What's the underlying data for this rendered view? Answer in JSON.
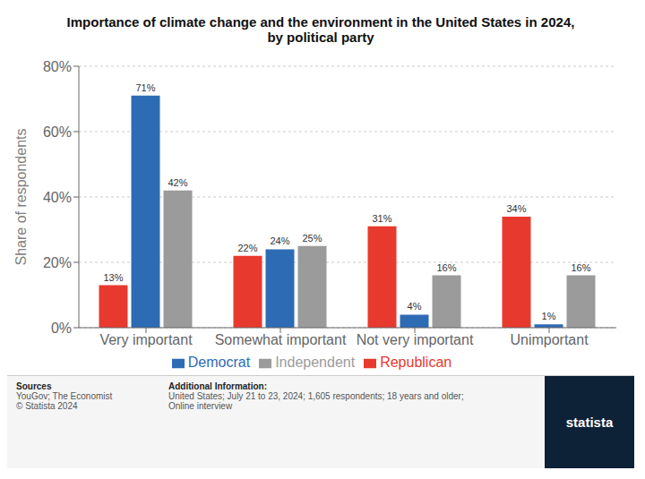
{
  "chart_data": {
    "type": "bar",
    "title": "Importance of climate change and the environment in the United States in 2024,\nby political party",
    "ylabel": "Share of respondents",
    "categories": [
      "Very important",
      "Somewhat important",
      "Not very important",
      "Unimportant"
    ],
    "series": [
      {
        "name": "Republican",
        "color": "#e8392e",
        "values": [
          13,
          22,
          31,
          34
        ],
        "value_labels": [
          "13%",
          "22%",
          "31%",
          "34%"
        ]
      },
      {
        "name": "Democrat",
        "color": "#2e6bb5",
        "values": [
          71,
          24,
          4,
          1
        ],
        "value_labels": [
          "71%",
          "24%",
          "4%",
          "1%"
        ]
      },
      {
        "name": "Independent",
        "color": "#9b9b9b",
        "values": [
          42,
          25,
          16,
          16
        ],
        "value_labels": [
          "42%",
          "25%",
          "16%",
          "16%"
        ]
      }
    ],
    "ylim": [
      0,
      80
    ],
    "yticks": [
      {
        "value": 0,
        "label": "0%"
      },
      {
        "value": 20,
        "label": "20%"
      },
      {
        "value": 40,
        "label": "40%"
      },
      {
        "value": 60,
        "label": "60%"
      },
      {
        "value": 80,
        "label": "80%"
      }
    ],
    "grid": true,
    "legend": "bottom",
    "data_labels": true,
    "annotations": [
      "Sources",
      "YouGov; The Economist\n© Statista 2024",
      "Additional Information:",
      "United States; July 21 to 23, 2024; 1,605 respondents; 18 years and older;\nOnline interview",
      "statista"
    ]
  }
}
